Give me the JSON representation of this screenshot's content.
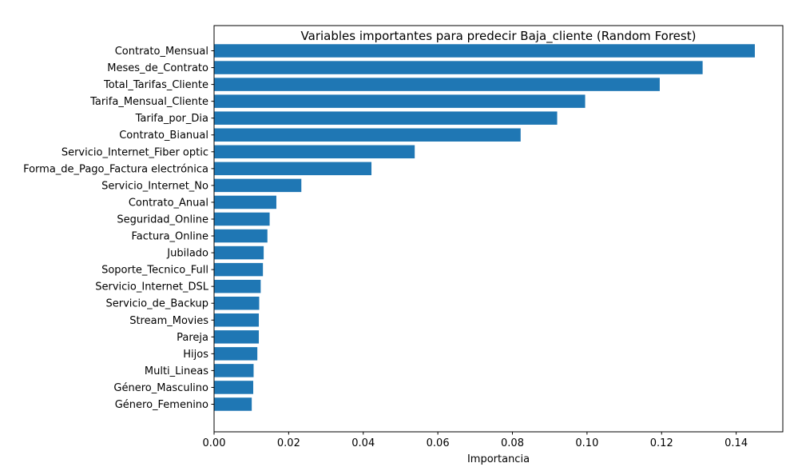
{
  "chart_data": {
    "type": "bar",
    "orientation": "horizontal",
    "title": "Variables importantes para predecir Baja_cliente (Random Forest)",
    "xlabel": "Importancia",
    "ylabel": "",
    "xlim": [
      0,
      0.1525
    ],
    "xticks": [
      0.0,
      0.02,
      0.04,
      0.06,
      0.08,
      0.1,
      0.12,
      0.14
    ],
    "xtick_labels": [
      "0.00",
      "0.02",
      "0.04",
      "0.06",
      "0.08",
      "0.10",
      "0.12",
      "0.14"
    ],
    "grid": false,
    "legend": "none",
    "bar_color": "#1f77b4",
    "categories": [
      "Contrato_Mensual",
      "Meses_de_Contrato",
      "Total_Tarifas_Cliente",
      "Tarifa_Mensual_Cliente",
      "Tarifa_por_Dia",
      "Contrato_Bianual",
      "Servicio_Internet_Fiber optic",
      "Forma_de_Pago_Factura electrónica",
      "Servicio_Internet_No",
      "Contrato_Anual",
      "Seguridad_Online",
      "Factura_Online",
      "Jubilado",
      "Soporte_Tecnico_Full",
      "Servicio_Internet_DSL",
      "Servicio_de_Backup",
      "Stream_Movies",
      "Pareja",
      "Hijos",
      "Multi_Lineas",
      "Género_Masculino",
      "Género_Femenino"
    ],
    "values": [
      0.145,
      0.131,
      0.1195,
      0.0995,
      0.092,
      0.0822,
      0.0538,
      0.0422,
      0.0234,
      0.0167,
      0.0149,
      0.0143,
      0.0133,
      0.0131,
      0.0125,
      0.0121,
      0.012,
      0.012,
      0.0116,
      0.0106,
      0.0105,
      0.0101
    ]
  }
}
